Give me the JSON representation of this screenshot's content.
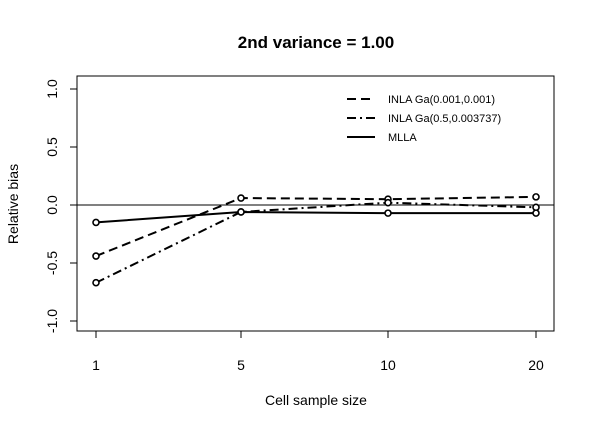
{
  "chart_data": {
    "type": "line",
    "title": "2nd variance = 1.00",
    "xlabel": "Cell sample size",
    "ylabel": "Relative bias",
    "x": [
      1,
      5,
      10,
      20
    ],
    "x_ticks": [
      "1",
      "5",
      "10",
      "20"
    ],
    "y_ticks": [
      "-1.0",
      "-0.5",
      "0.0",
      "0.5",
      "1.0"
    ],
    "ylim": [
      -1.0,
      1.0
    ],
    "reference_line_y": 0.0,
    "legend_position": "top-right",
    "series": [
      {
        "name": "INLA Ga(0.001,0.001)",
        "line_style": "dashed",
        "markers": true,
        "values": [
          -0.44,
          0.06,
          0.05,
          0.07
        ]
      },
      {
        "name": "INLA Ga(0.5,0.003737)",
        "line_style": "dotdash",
        "markers": true,
        "values": [
          -0.67,
          -0.06,
          0.02,
          -0.02
        ]
      },
      {
        "name": "MLLA",
        "line_style": "solid",
        "markers": true,
        "values": [
          -0.15,
          -0.06,
          -0.07,
          -0.07
        ]
      }
    ]
  }
}
